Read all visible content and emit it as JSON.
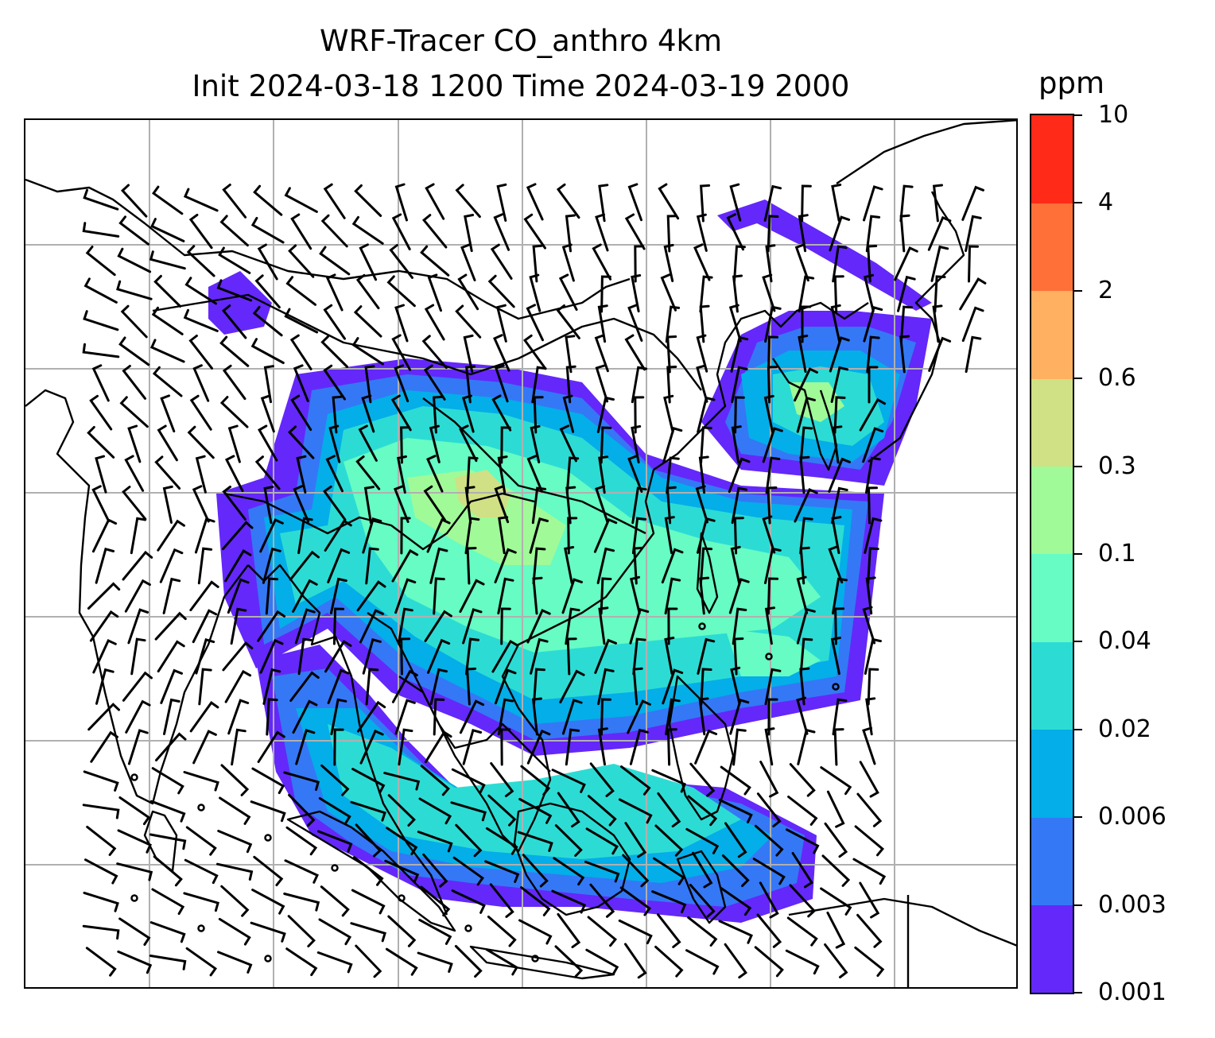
{
  "title": {
    "line1": "WRF-Tracer CO_anthro 4km",
    "line2": "Init 2024-03-18 1200 Time 2024-03-19 2000"
  },
  "colorbar": {
    "unit": "ppm",
    "levels": [
      "0.001",
      "0.003",
      "0.006",
      "0.02",
      "0.04",
      "0.1",
      "0.3",
      "0.6",
      "2",
      "4",
      "10"
    ],
    "colors": [
      "#6428fa",
      "#3478f6",
      "#04aee8",
      "#2cdcd4",
      "#66fcc4",
      "#a0fa98",
      "#d0e084",
      "#ffb060",
      "#ff7038",
      "#ff2a18"
    ]
  },
  "map": {
    "gridlines": "on",
    "grid_color": "#b0b0b0",
    "coastline_color": "#000000",
    "overlay": "wind barbs",
    "field": "CO_anthro tracer concentration"
  }
}
